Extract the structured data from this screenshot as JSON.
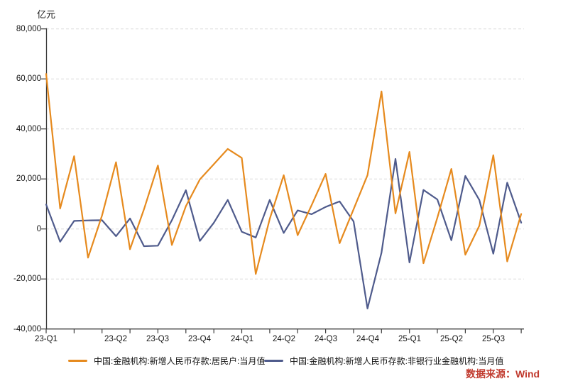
{
  "source_note": "数据来源：Wind",
  "colors": {
    "household": "#E68A1E",
    "nonbank": "#4F5B8C",
    "grid": "#DBDBDB",
    "axis": "#3C3C3C",
    "source": "#C13B2F"
  },
  "chart_data": {
    "type": "line",
    "title": "",
    "ylabel": "亿元",
    "ylim": [
      -40000,
      80000
    ],
    "ytick_step": 20000,
    "grid": "horizontal-dashed",
    "legend_position": "bottom",
    "x": [
      "2023-01",
      "2023-02",
      "2023-03",
      "2023-04",
      "2023-05",
      "2023-06",
      "2023-07",
      "2023-08",
      "2023-09",
      "2023-10",
      "2023-11",
      "2023-12",
      "2024-01",
      "2024-02",
      "2024-03",
      "2024-04",
      "2024-05",
      "2024-06",
      "2024-07",
      "2024-08",
      "2024-09",
      "2024-10",
      "2024-11",
      "2024-12",
      "2025-01",
      "2025-02",
      "2025-03",
      "2025-04",
      "2025-05",
      "2025-06",
      "2025-07",
      "2025-08",
      "2025-09",
      "2025-10",
      "2025-11"
    ],
    "x_labels": [
      {
        "label": "23-Q1",
        "month_index": 0
      },
      {
        "label": "23-Q2",
        "month_index": 5
      },
      {
        "label": "23-Q3",
        "month_index": 8
      },
      {
        "label": "23-Q4",
        "month_index": 11
      },
      {
        "label": "24-Q1",
        "month_index": 14
      },
      {
        "label": "24-Q2",
        "month_index": 17
      },
      {
        "label": "24-Q3",
        "month_index": 20
      },
      {
        "label": "24-Q4",
        "month_index": 23
      },
      {
        "label": "25-Q1",
        "month_index": 26
      },
      {
        "label": "25-Q2",
        "month_index": 29
      },
      {
        "label": "25-Q3",
        "month_index": 32
      }
    ],
    "x_tick_every_n_months": 2,
    "series": [
      {
        "name": "中国:金融机构:新增人民币存款:居民户:当月值",
        "color": "#E68A1E",
        "values": [
          62000,
          8200,
          29100,
          -11500,
          5400,
          26700,
          -8100,
          7900,
          25400,
          -6400,
          9100,
          19800,
          25900,
          32000,
          28400,
          -18000,
          4000,
          21500,
          -2500,
          9500,
          22000,
          -5700,
          7900,
          21500,
          55000,
          6200,
          30800,
          -13700,
          4500,
          24000,
          -10300,
          1300,
          29500,
          -13000,
          6000
        ]
      },
      {
        "name": "中国:金融机构:新增人民币存款:非银行业金融机构:当月值",
        "color": "#4F5B8C",
        "values": [
          9800,
          -5100,
          3200,
          3400,
          3500,
          -2900,
          4200,
          -6900,
          -6700,
          3500,
          15500,
          -4800,
          2500,
          11600,
          -1100,
          -3400,
          11600,
          -1600,
          7400,
          5900,
          8800,
          11000,
          3000,
          -31800,
          -9500,
          28000,
          -13400,
          15600,
          11800,
          -4500,
          21200,
          11600,
          -9900,
          18500,
          2500
        ]
      }
    ]
  }
}
